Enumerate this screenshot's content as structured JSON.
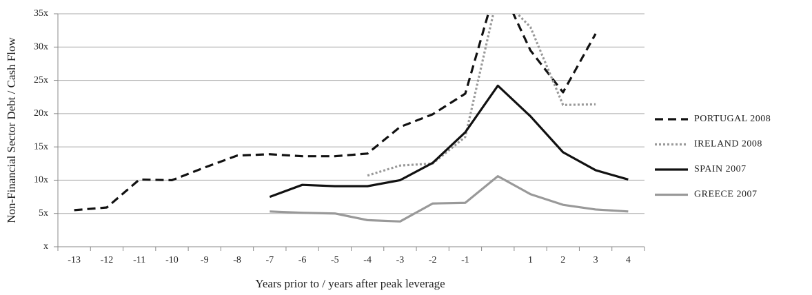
{
  "chart_data": {
    "type": "line",
    "x_label": "Years prior to / years after peak leverage",
    "y_label": "Non-Financial Sector Debt / Cash Flow",
    "categories": [
      "-13",
      "-12",
      "-11",
      "-10",
      "-9",
      "-8",
      "-7",
      "-6",
      "-5",
      "-4",
      "-3",
      "-2",
      "-1",
      null,
      "1",
      "2",
      "3",
      "4"
    ],
    "ylim": [
      0,
      35
    ],
    "yticks": [
      {
        "value": 0,
        "label": "x"
      },
      {
        "value": 5,
        "label": "5x"
      },
      {
        "value": 10,
        "label": "10x"
      },
      {
        "value": 15,
        "label": "15x"
      },
      {
        "value": 20,
        "label": "20x"
      },
      {
        "value": 25,
        "label": "25x"
      },
      {
        "value": 30,
        "label": "30x"
      },
      {
        "value": 35,
        "label": "35x"
      }
    ],
    "grid": true,
    "legend": "right",
    "series": [
      {
        "name": "PORTUGAL 2008",
        "color": "#111111",
        "style": "dashed",
        "values": [
          5.5,
          5.9,
          10.1,
          10.0,
          11.9,
          13.7,
          13.9,
          13.6,
          13.6,
          14.0,
          18.0,
          19.9,
          23.0,
          40,
          29.5,
          23.2,
          32.0,
          null
        ]
      },
      {
        "name": "IRELAND 2008",
        "color": "#999999",
        "style": "dotted",
        "values": [
          null,
          null,
          null,
          null,
          null,
          null,
          null,
          null,
          null,
          10.7,
          12.2,
          12.5,
          16.5,
          38,
          33.0,
          21.3,
          21.4,
          null
        ]
      },
      {
        "name": "SPAIN 2007",
        "color": "#111111",
        "style": "solid",
        "values": [
          null,
          null,
          null,
          null,
          null,
          null,
          7.5,
          9.3,
          9.1,
          9.1,
          10.0,
          12.6,
          17.2,
          24.2,
          19.6,
          14.2,
          11.5,
          10.1
        ]
      },
      {
        "name": "GREECE 2007",
        "color": "#999999",
        "style": "solid",
        "values": [
          null,
          null,
          null,
          null,
          null,
          null,
          5.3,
          5.1,
          5.0,
          4.0,
          3.8,
          6.5,
          6.6,
          10.6,
          7.9,
          6.3,
          5.6,
          5.3
        ]
      }
    ]
  }
}
